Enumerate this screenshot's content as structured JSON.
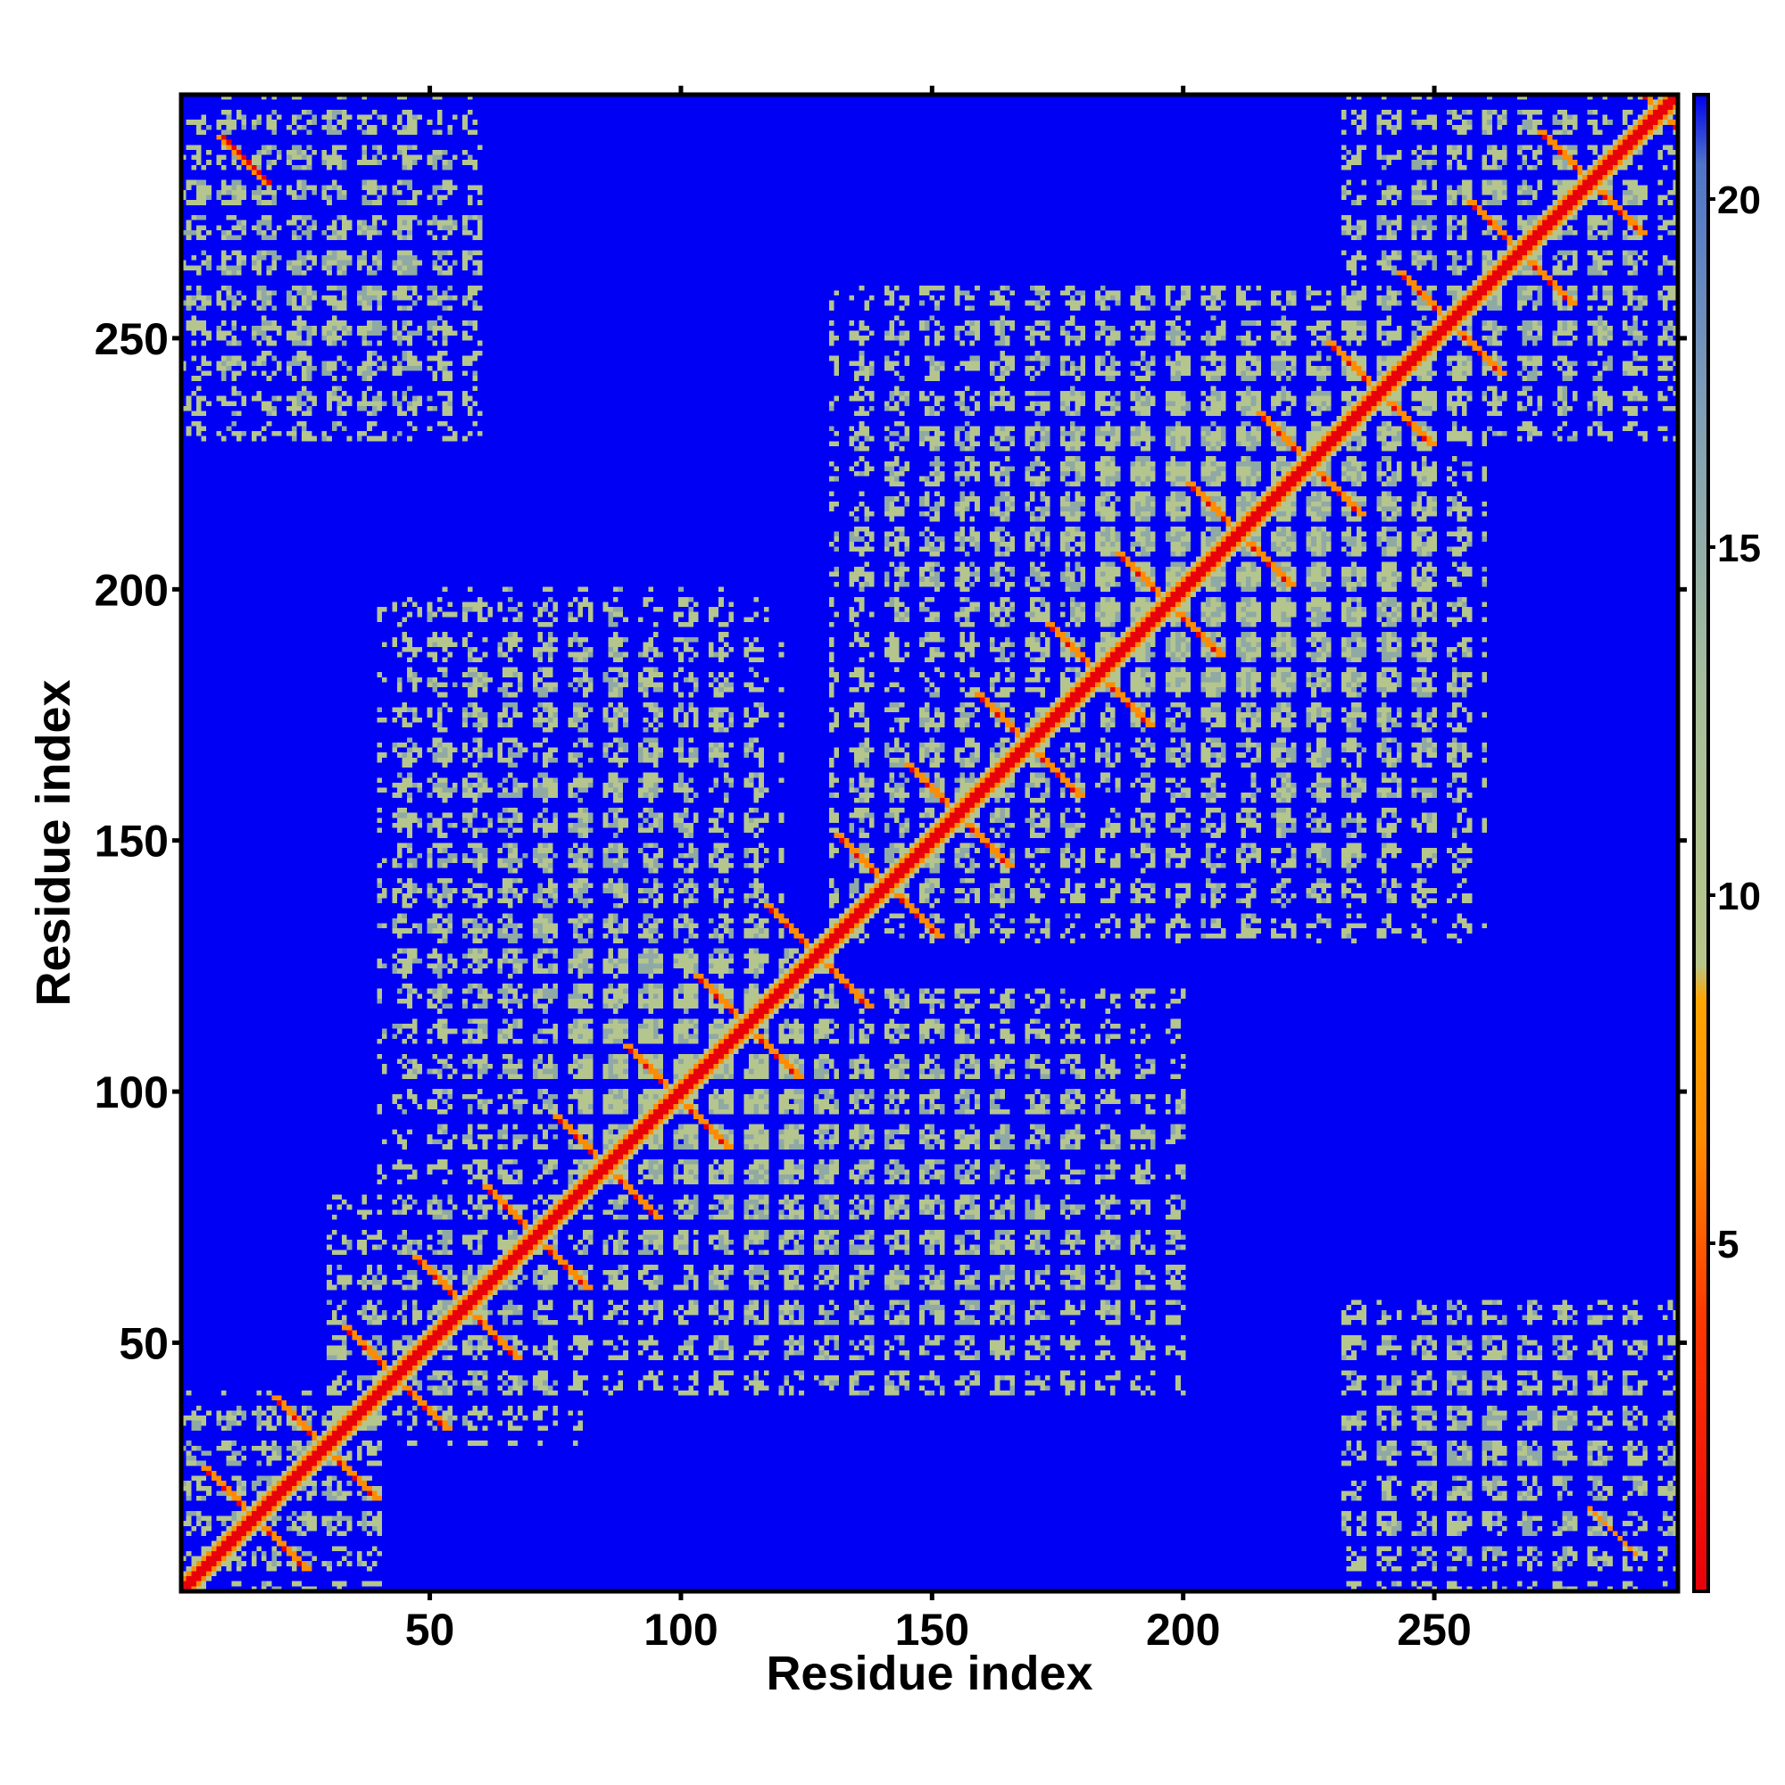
{
  "chart_data": {
    "type": "heatmap",
    "title": "",
    "xlabel": "Residue index",
    "ylabel": "Residue index",
    "x_range": [
      1,
      298
    ],
    "y_range": [
      1,
      298
    ],
    "xticks": [
      50,
      100,
      150,
      200,
      250
    ],
    "yticks": [
      50,
      100,
      150,
      200,
      250
    ],
    "colorbar": {
      "ticks": [
        5,
        10,
        15,
        20
      ],
      "range": [
        0,
        21.5
      ],
      "gradient": [
        {
          "value": 0.0,
          "color": "#e8000b"
        },
        {
          "value": 4.0,
          "color": "#ff3a00"
        },
        {
          "value": 6.5,
          "color": "#ff8c00"
        },
        {
          "value": 8.5,
          "color": "#ffa500"
        },
        {
          "value": 9.0,
          "color": "#b9c68a"
        },
        {
          "value": 13.0,
          "color": "#a6be9c"
        },
        {
          "value": 17.0,
          "color": "#7f9db5"
        },
        {
          "value": 20.5,
          "color": "#4f74c9"
        },
        {
          "value": 21.5,
          "color": "#0000ee"
        }
      ]
    },
    "background_value": "beyond 21 (saturated)",
    "background_color": "#0000f5",
    "cell_colors": {
      "contact": "#e8000b",
      "near": "#ff8c00",
      "mid": "#b5c58e",
      "far": "#8fa9a4",
      "none": "#0000f5"
    },
    "diagonal_band": "residue i vs residue i, distance ~0",
    "contact_blocks": [
      {
        "x": [
          1,
          40
        ],
        "y": [
          1,
          40
        ]
      },
      {
        "x": [
          30,
          80
        ],
        "y": [
          30,
          80
        ]
      },
      {
        "x": [
          80,
          130
        ],
        "y": [
          80,
          130
        ]
      },
      {
        "x": [
          130,
          180
        ],
        "y": [
          130,
          180
        ]
      },
      {
        "x": [
          180,
          230
        ],
        "y": [
          180,
          230
        ]
      },
      {
        "x": [
          230,
          298
        ],
        "y": [
          230,
          298
        ]
      },
      {
        "x": [
          1,
          60
        ],
        "y": [
          230,
          298
        ]
      },
      {
        "x": [
          230,
          298
        ],
        "y": [
          1,
          60
        ]
      },
      {
        "x": [
          40,
          120
        ],
        "y": [
          80,
          200
        ]
      },
      {
        "x": [
          80,
          200
        ],
        "y": [
          40,
          120
        ]
      },
      {
        "x": [
          130,
          250
        ],
        "y": [
          180,
          260
        ]
      },
      {
        "x": [
          180,
          260
        ],
        "y": [
          130,
          250
        ]
      }
    ]
  }
}
